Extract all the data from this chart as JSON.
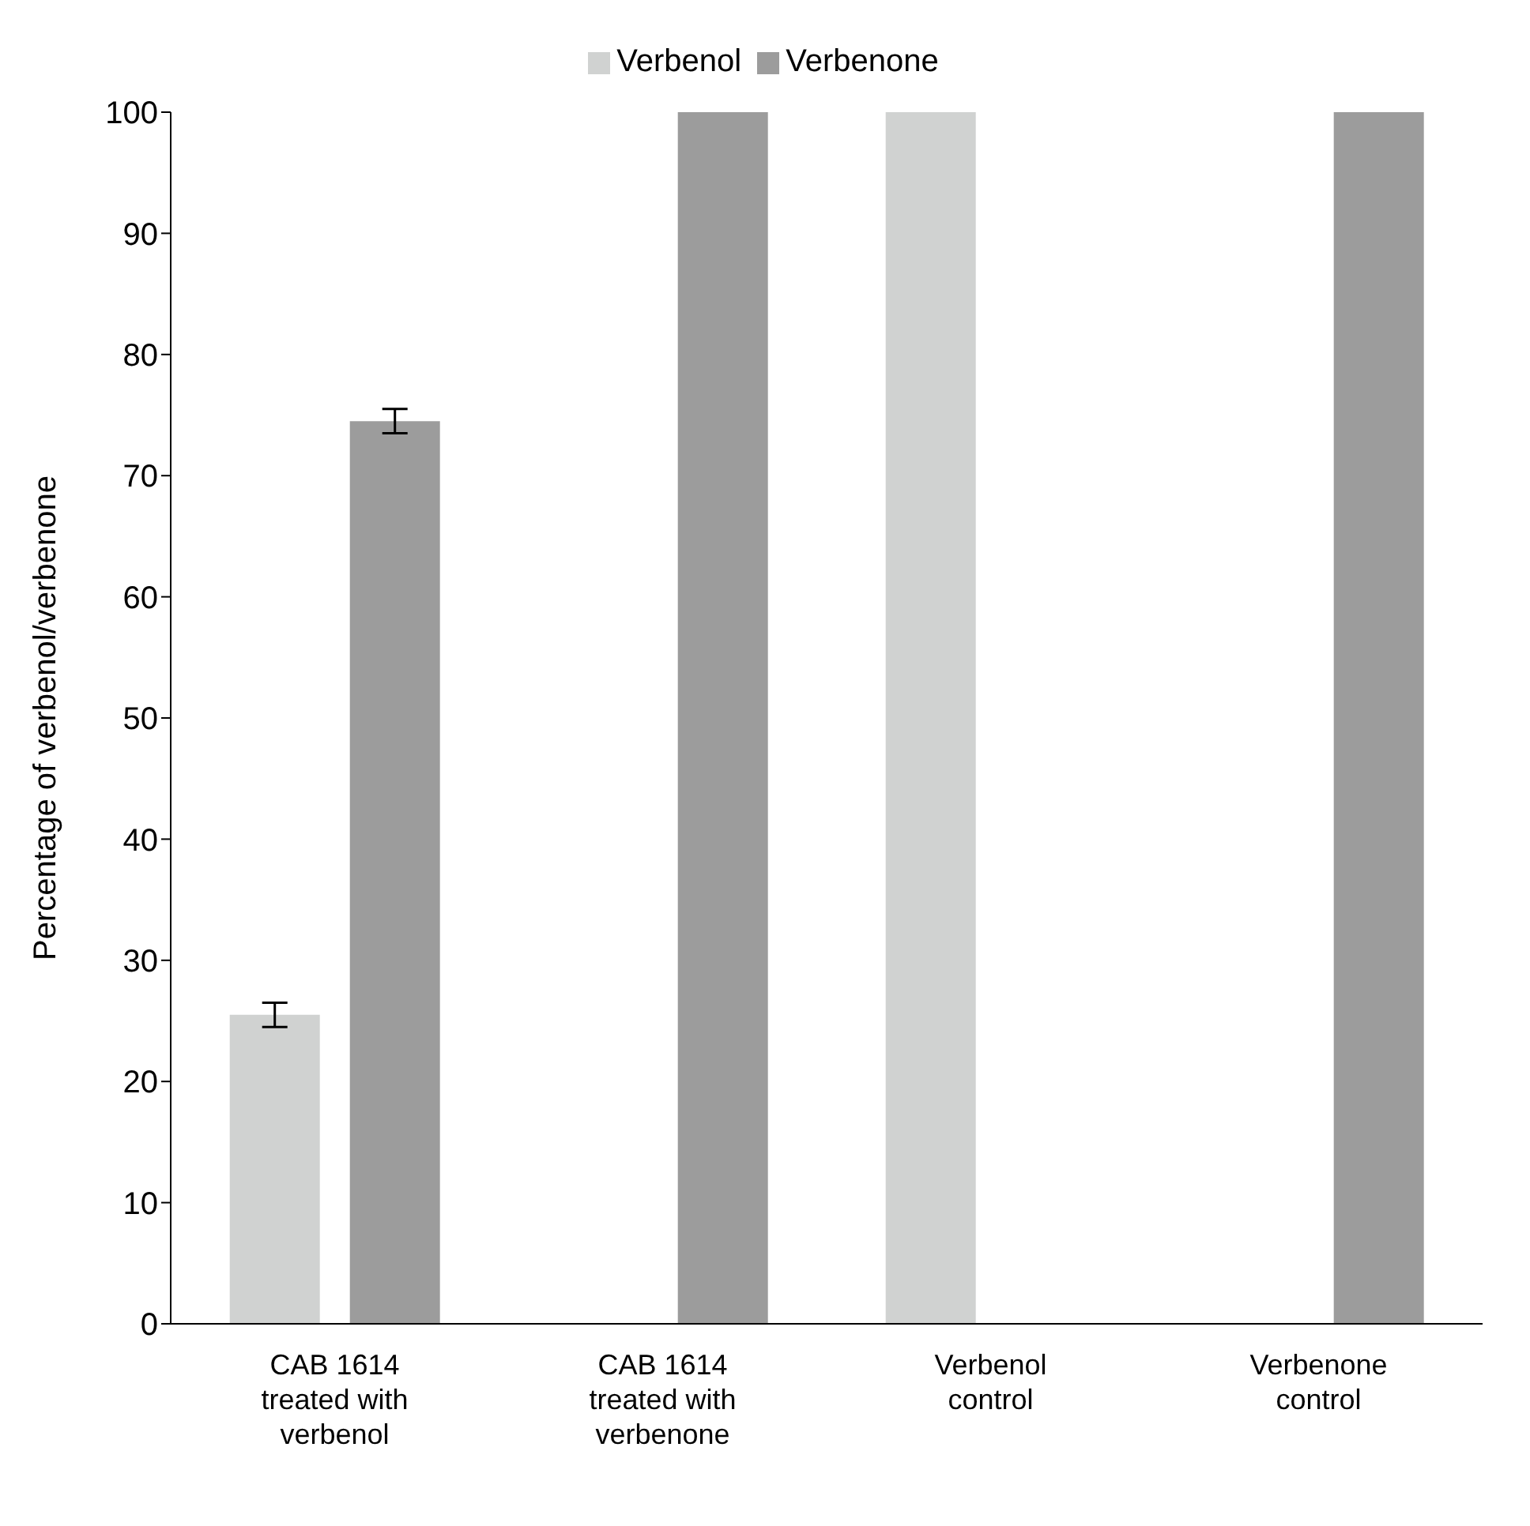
{
  "chart_data": {
    "type": "bar",
    "ylabel": "Percentage of verbenol/verbenone",
    "categories": [
      "CAB 1614 treated with verbenol",
      "CAB 1614 treated with verbenone",
      "Verbenol control",
      "Verbenone control"
    ],
    "series": [
      {
        "name": "Verbenol",
        "color": "#d0d2d1",
        "values": [
          25.5,
          null,
          100,
          null
        ],
        "errors": [
          1,
          null,
          0,
          null
        ]
      },
      {
        "name": "Verbenone",
        "color": "#9c9c9c",
        "values": [
          74.5,
          100,
          null,
          100
        ],
        "errors": [
          1,
          0,
          null,
          0
        ]
      }
    ],
    "ylim": [
      0,
      100
    ],
    "yticks": [
      0,
      10,
      20,
      30,
      40,
      50,
      60,
      70,
      80,
      90,
      100
    ],
    "grid": false,
    "legend": "top"
  }
}
